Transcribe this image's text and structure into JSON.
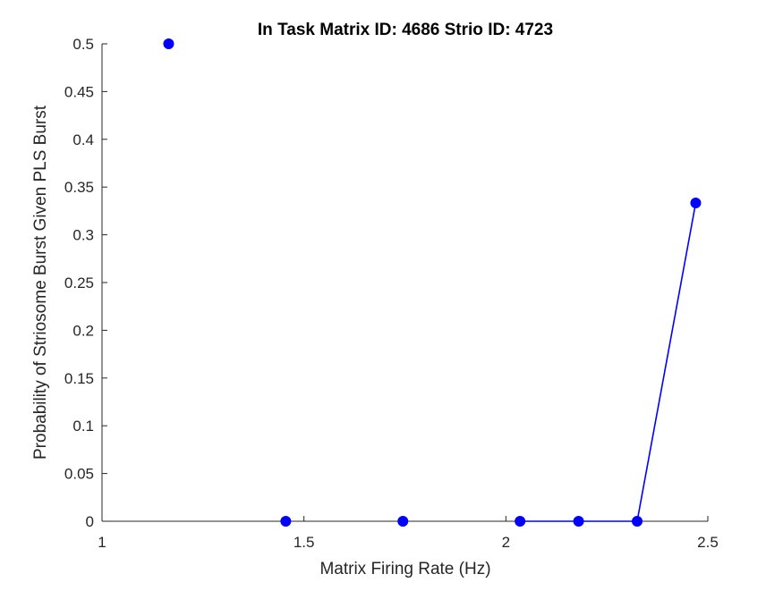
{
  "chart_data": {
    "type": "scatter",
    "title": "In Task Matrix ID: 4686 Strio ID: 4723",
    "xlabel": "Matrix Firing Rate (Hz)",
    "ylabel": "Probability of Striosome Burst Given PLS Burst",
    "xlim": [
      1,
      2.5
    ],
    "ylim": [
      0,
      0.5
    ],
    "x_ticks": [
      "1",
      "1.5",
      "2",
      "2.5"
    ],
    "y_ticks": [
      "0",
      "0.05",
      "0.1",
      "0.15",
      "0.2",
      "0.25",
      "0.3",
      "0.35",
      "0.4",
      "0.45",
      "0.5"
    ],
    "grid": false,
    "series": [
      {
        "color": "#0000ff",
        "x": [
          1.165,
          1.455,
          1.745,
          2.035,
          2.18,
          2.325,
          2.47
        ],
        "y": [
          0.5,
          0,
          0,
          0,
          0,
          0,
          0.3333
        ],
        "line_segments": [
          [
            3,
            4
          ],
          [
            4,
            5
          ],
          [
            5,
            6
          ]
        ]
      }
    ]
  }
}
